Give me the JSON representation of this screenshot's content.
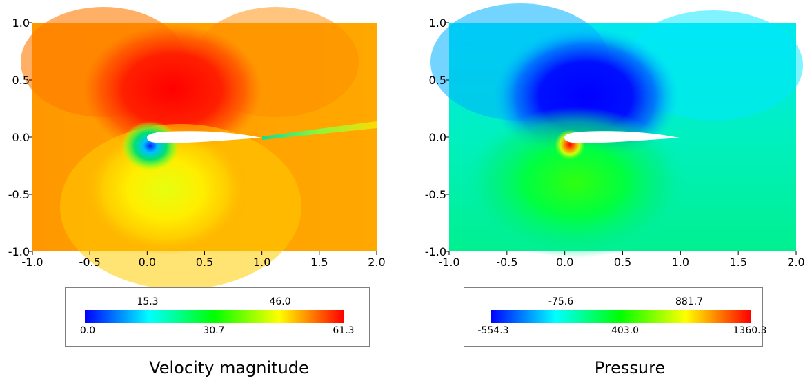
{
  "chart_data": [
    {
      "type": "heatmap",
      "title": "Velocity magnitude",
      "xlim": [
        -1.0,
        2.0
      ],
      "ylim": [
        -1.0,
        1.0
      ],
      "x_ticks": [
        "-1.0",
        "-0.5",
        "0.0",
        "0.5",
        "1.0",
        "1.5",
        "2.0"
      ],
      "y_ticks": [
        "1.0",
        "0.5",
        "0.0",
        "-0.5",
        "-1.0"
      ],
      "colorbar": {
        "min": 0.0,
        "max": 61.3,
        "upper_labels": [
          "15.3",
          "46.0"
        ],
        "lower_labels": [
          "0.0",
          "30.7",
          "61.3"
        ]
      },
      "colormap": [
        "#0000ff",
        "#00ffff",
        "#00ff00",
        "#ffff00",
        "#ff0000"
      ]
    },
    {
      "type": "heatmap",
      "title": "Pressure",
      "xlim": [
        -1.0,
        2.0
      ],
      "ylim": [
        -1.0,
        1.0
      ],
      "x_ticks": [
        "-1.0",
        "-0.5",
        "0.0",
        "0.5",
        "1.0",
        "1.5",
        "2.0"
      ],
      "y_ticks": [
        "1.0",
        "0.5",
        "0.0",
        "-0.5",
        "-1.0"
      ],
      "colorbar": {
        "min": -554.3,
        "max": 1360.3,
        "upper_labels": [
          "-75.6",
          "881.7"
        ],
        "lower_labels": [
          "-554.3",
          "403.0",
          "1360.3"
        ]
      },
      "colormap": [
        "#0000ff",
        "#00ffff",
        "#00ff00",
        "#ffff00",
        "#ff0000"
      ]
    }
  ]
}
